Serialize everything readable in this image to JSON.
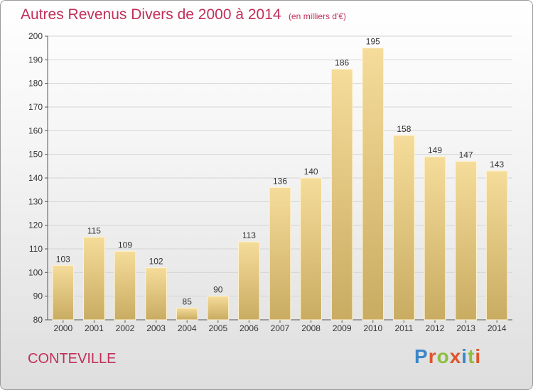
{
  "title": "Autres Revenus Divers de 2000 à 2014",
  "subtitle": "(en milliers d'€)",
  "commune": "CONTEVILLE",
  "logo": {
    "text": "Proxiti",
    "letter_colors": [
      "#3a86c8",
      "#e0542c",
      "#8cbf3f",
      "#e0542c",
      "#3a86c8",
      "#8cbf3f",
      "#e0542c"
    ]
  },
  "colors": {
    "bar_light": "#f5dc9a",
    "bar_dark": "#c9ac62",
    "title": "#c0305a",
    "axis": "#555555"
  },
  "chart_data": {
    "type": "bar",
    "categories": [
      "2000",
      "2001",
      "2002",
      "2003",
      "2004",
      "2005",
      "2006",
      "2007",
      "2008",
      "2009",
      "2010",
      "2011",
      "2012",
      "2013",
      "2014"
    ],
    "values": [
      103,
      115,
      109,
      102,
      85,
      90,
      113,
      136,
      140,
      186,
      195,
      158,
      149,
      147,
      143
    ],
    "ylim": [
      80,
      200
    ],
    "yticks": [
      80,
      90,
      100,
      110,
      120,
      130,
      140,
      150,
      160,
      170,
      180,
      190,
      200
    ],
    "grid": true,
    "data_labels": true
  }
}
